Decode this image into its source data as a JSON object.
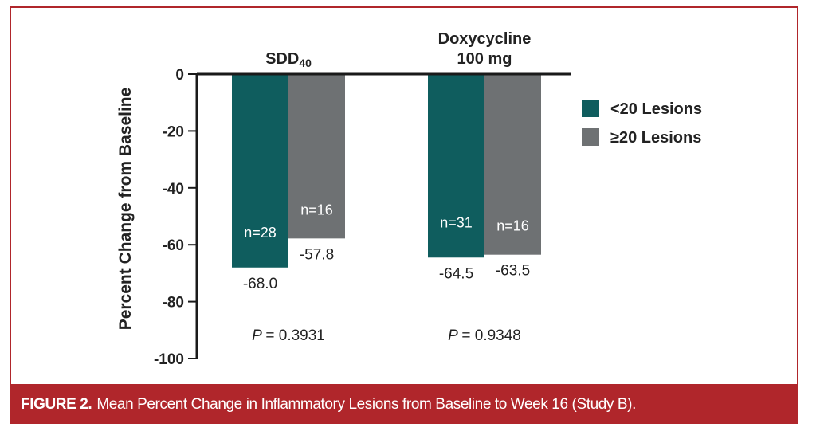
{
  "chart_data": {
    "type": "bar",
    "groups": [
      {
        "label": "SDD",
        "subscript": "40",
        "p_prefix": "P",
        "p_value": "= 0.3931"
      },
      {
        "label": "Doxycycline\n100 mg",
        "subscript": "",
        "p_prefix": "P",
        "p_value": "= 0.9348"
      }
    ],
    "series": [
      {
        "name": "<20 Lesions",
        "color": "#0f5d5e",
        "values": [
          -68.0,
          -64.5
        ],
        "value_labels": [
          "-68.0",
          "-64.5"
        ],
        "n_labels": [
          "n=28",
          "n=31"
        ]
      },
      {
        "name": "≥20 Lesions",
        "color": "#6e7173",
        "values": [
          -57.8,
          -63.5
        ],
        "value_labels": [
          "-57.8",
          "-63.5"
        ],
        "n_labels": [
          "n=16",
          "n=16"
        ]
      }
    ],
    "ylabel": "Percent Change from Baseline",
    "ylim": [
      -100,
      0
    ],
    "yticks": [
      0,
      -20,
      -40,
      -60,
      -80,
      -100
    ],
    "grid": false,
    "legend_position": "right"
  },
  "caption": {
    "label": "FIGURE 2.",
    "text": "Mean Percent Change in Inflammatory Lesions from Baseline to Week 16 (Study B)."
  }
}
